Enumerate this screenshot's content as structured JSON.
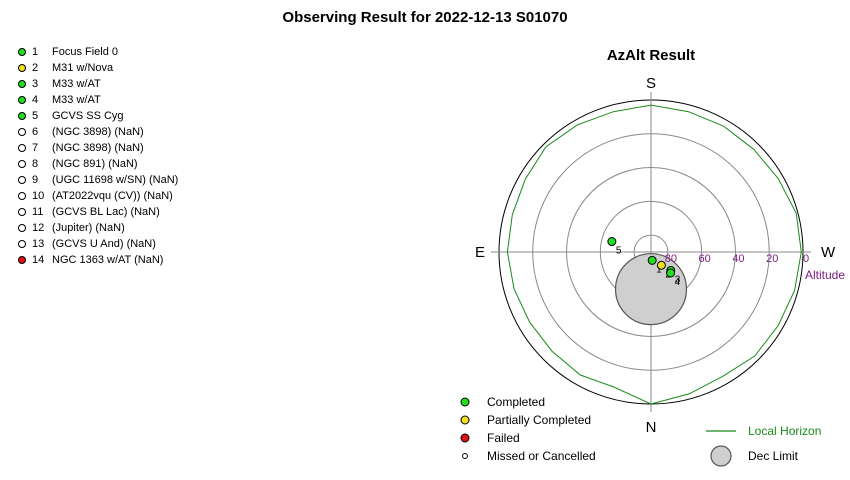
{
  "title": "Observing Result for 2022-12-13 S01070",
  "targets": [
    {
      "num": "1",
      "name": "Focus Field 0",
      "status": "completed"
    },
    {
      "num": "2",
      "name": "M31 w/Nova",
      "status": "partial"
    },
    {
      "num": "3",
      "name": "M33 w/AT",
      "status": "completed"
    },
    {
      "num": "4",
      "name": "M33 w/AT",
      "status": "completed"
    },
    {
      "num": "5",
      "name": "GCVS SS Cyg",
      "status": "completed"
    },
    {
      "num": "6",
      "name": " (NGC 3898) (NaN)",
      "status": "missed"
    },
    {
      "num": "7",
      "name": " (NGC 3898) (NaN)",
      "status": "missed"
    },
    {
      "num": "8",
      "name": " (NGC 891) (NaN)",
      "status": "missed"
    },
    {
      "num": "9",
      "name": " (UGC 11698 w/SN) (NaN)",
      "status": "missed"
    },
    {
      "num": "10",
      "name": " (AT2022vqu (CV)) (NaN)",
      "status": "missed"
    },
    {
      "num": "11",
      "name": " (GCVS BL Lac) (NaN)",
      "status": "missed"
    },
    {
      "num": "12",
      "name": " (Jupiter) (NaN)",
      "status": "missed"
    },
    {
      "num": "13",
      "name": " (GCVS U And) (NaN)",
      "status": "missed"
    },
    {
      "num": "14",
      "name": "NGC 1363 w/AT (NaN)",
      "status": "failed"
    }
  ],
  "status_colors": {
    "completed": "#22dd22",
    "partial": "#f0e020",
    "failed": "#dd1111",
    "missed": "#ffffff"
  },
  "chart_data": {
    "type": "polar",
    "title": "AzAlt Result",
    "compass": {
      "S": "S",
      "N": "N",
      "E": "E",
      "W": "W"
    },
    "altitude_label": "Altitude",
    "altitude_ticks": [
      "80",
      "60",
      "40",
      "20",
      "0"
    ],
    "altitude_tick_values": [
      80,
      60,
      40,
      20,
      0
    ],
    "grid_altitudes": [
      0,
      20,
      40,
      60,
      80
    ],
    "orientation": "South at top, West at right, North at bottom, East at left",
    "points": [
      {
        "label": "1",
        "az": 8,
        "alt": 85,
        "status": "completed"
      },
      {
        "label": "2",
        "az": 38,
        "alt": 80,
        "status": "partial"
      },
      {
        "label": "3",
        "az": 47,
        "alt": 74,
        "status": "completed"
      },
      {
        "label": "4",
        "az": 43,
        "alt": 73,
        "status": "completed"
      },
      {
        "label": "5",
        "az": 255,
        "alt": 66,
        "status": "completed"
      }
    ],
    "dec_limit": {
      "center_az": 0,
      "center_alt": 68,
      "radius_deg": 21,
      "color": "#cfcfcf"
    },
    "local_horizon": {
      "color": "#1a8a1a",
      "az": [
        0,
        15,
        30,
        45,
        60,
        75,
        90,
        105,
        120,
        135,
        150,
        165,
        180,
        195,
        210,
        225,
        240,
        255,
        270,
        285,
        300,
        315,
        330,
        345,
        360
      ],
      "alt": [
        0,
        3,
        5,
        3,
        3,
        2,
        1,
        1,
        3,
        4,
        4,
        4,
        3,
        4,
        3,
        2,
        4,
        5,
        5,
        6,
        7,
        7,
        6,
        7,
        0
      ]
    },
    "legend": [
      {
        "status": "completed",
        "label": "Completed"
      },
      {
        "status": "partial",
        "label": "Partially Completed"
      },
      {
        "status": "failed",
        "label": "Failed"
      },
      {
        "status": "missed",
        "label": "Missed or Cancelled"
      }
    ],
    "legend_lines": [
      {
        "kind": "line",
        "label": "Local Horizon"
      },
      {
        "kind": "circle",
        "label": "Dec Limit"
      }
    ]
  }
}
